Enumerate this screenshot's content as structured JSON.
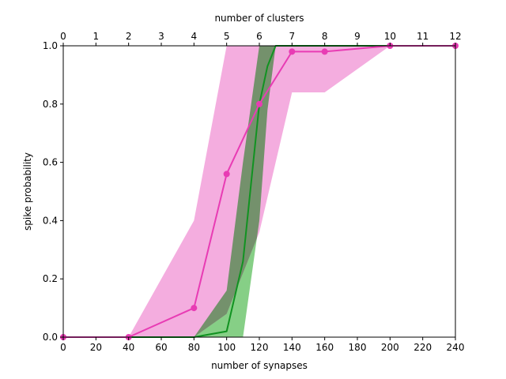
{
  "chart_data": {
    "type": "line",
    "xlabel": "number of synapses",
    "ylabel": "spike probability",
    "x2label": "number of clusters",
    "xlim": [
      0,
      240
    ],
    "ylim": [
      0,
      1
    ],
    "x2lim": [
      0,
      12
    ],
    "x_ticks": [
      0,
      20,
      40,
      60,
      80,
      100,
      120,
      140,
      160,
      180,
      200,
      220,
      240
    ],
    "x2_ticks": [
      0,
      1,
      2,
      3,
      4,
      5,
      6,
      7,
      8,
      9,
      10,
      11,
      12
    ],
    "y_ticks": [
      0.0,
      0.2,
      0.4,
      0.6,
      0.8,
      1.0
    ],
    "y_tick_labels": [
      "0.0",
      "0.2",
      "0.4",
      "0.6",
      "0.8",
      "1.0"
    ],
    "grid": false,
    "series": [
      {
        "color": "#e83cb4",
        "band_color": "#f29fd9",
        "marker": "circle",
        "axis": "top",
        "x": [
          0,
          2,
          4,
          5,
          6,
          7,
          8,
          10,
          12
        ],
        "y": [
          0.0,
          0.0,
          0.1,
          0.56,
          0.8,
          0.98,
          0.98,
          1.0,
          1.0
        ],
        "lower": [
          0.0,
          0.0,
          0.0,
          0.08,
          0.36,
          0.84,
          0.84,
          1.0,
          1.0
        ],
        "upper": [
          0.0,
          0.0,
          0.4,
          1.0,
          1.0,
          1.0,
          1.0,
          1.0,
          1.0
        ]
      },
      {
        "color": "#119221",
        "band_color": "#86cf86",
        "marker": "none",
        "axis": "bottom",
        "x": [
          0,
          20,
          40,
          60,
          80,
          100,
          110,
          120,
          125,
          130,
          140,
          160,
          200,
          240
        ],
        "y": [
          0.0,
          0.0,
          0.0,
          0.0,
          0.0,
          0.02,
          0.26,
          0.8,
          0.93,
          1.0,
          1.0,
          1.0,
          1.0,
          1.0
        ],
        "lower": [
          0.0,
          0.0,
          0.0,
          0.0,
          0.0,
          0.0,
          0.0,
          0.4,
          0.78,
          1.0,
          1.0,
          1.0,
          1.0,
          1.0
        ],
        "upper": [
          0.0,
          0.0,
          0.0,
          0.0,
          0.0,
          0.16,
          0.6,
          1.0,
          1.0,
          1.0,
          1.0,
          1.0,
          1.0,
          1.0
        ]
      }
    ]
  }
}
